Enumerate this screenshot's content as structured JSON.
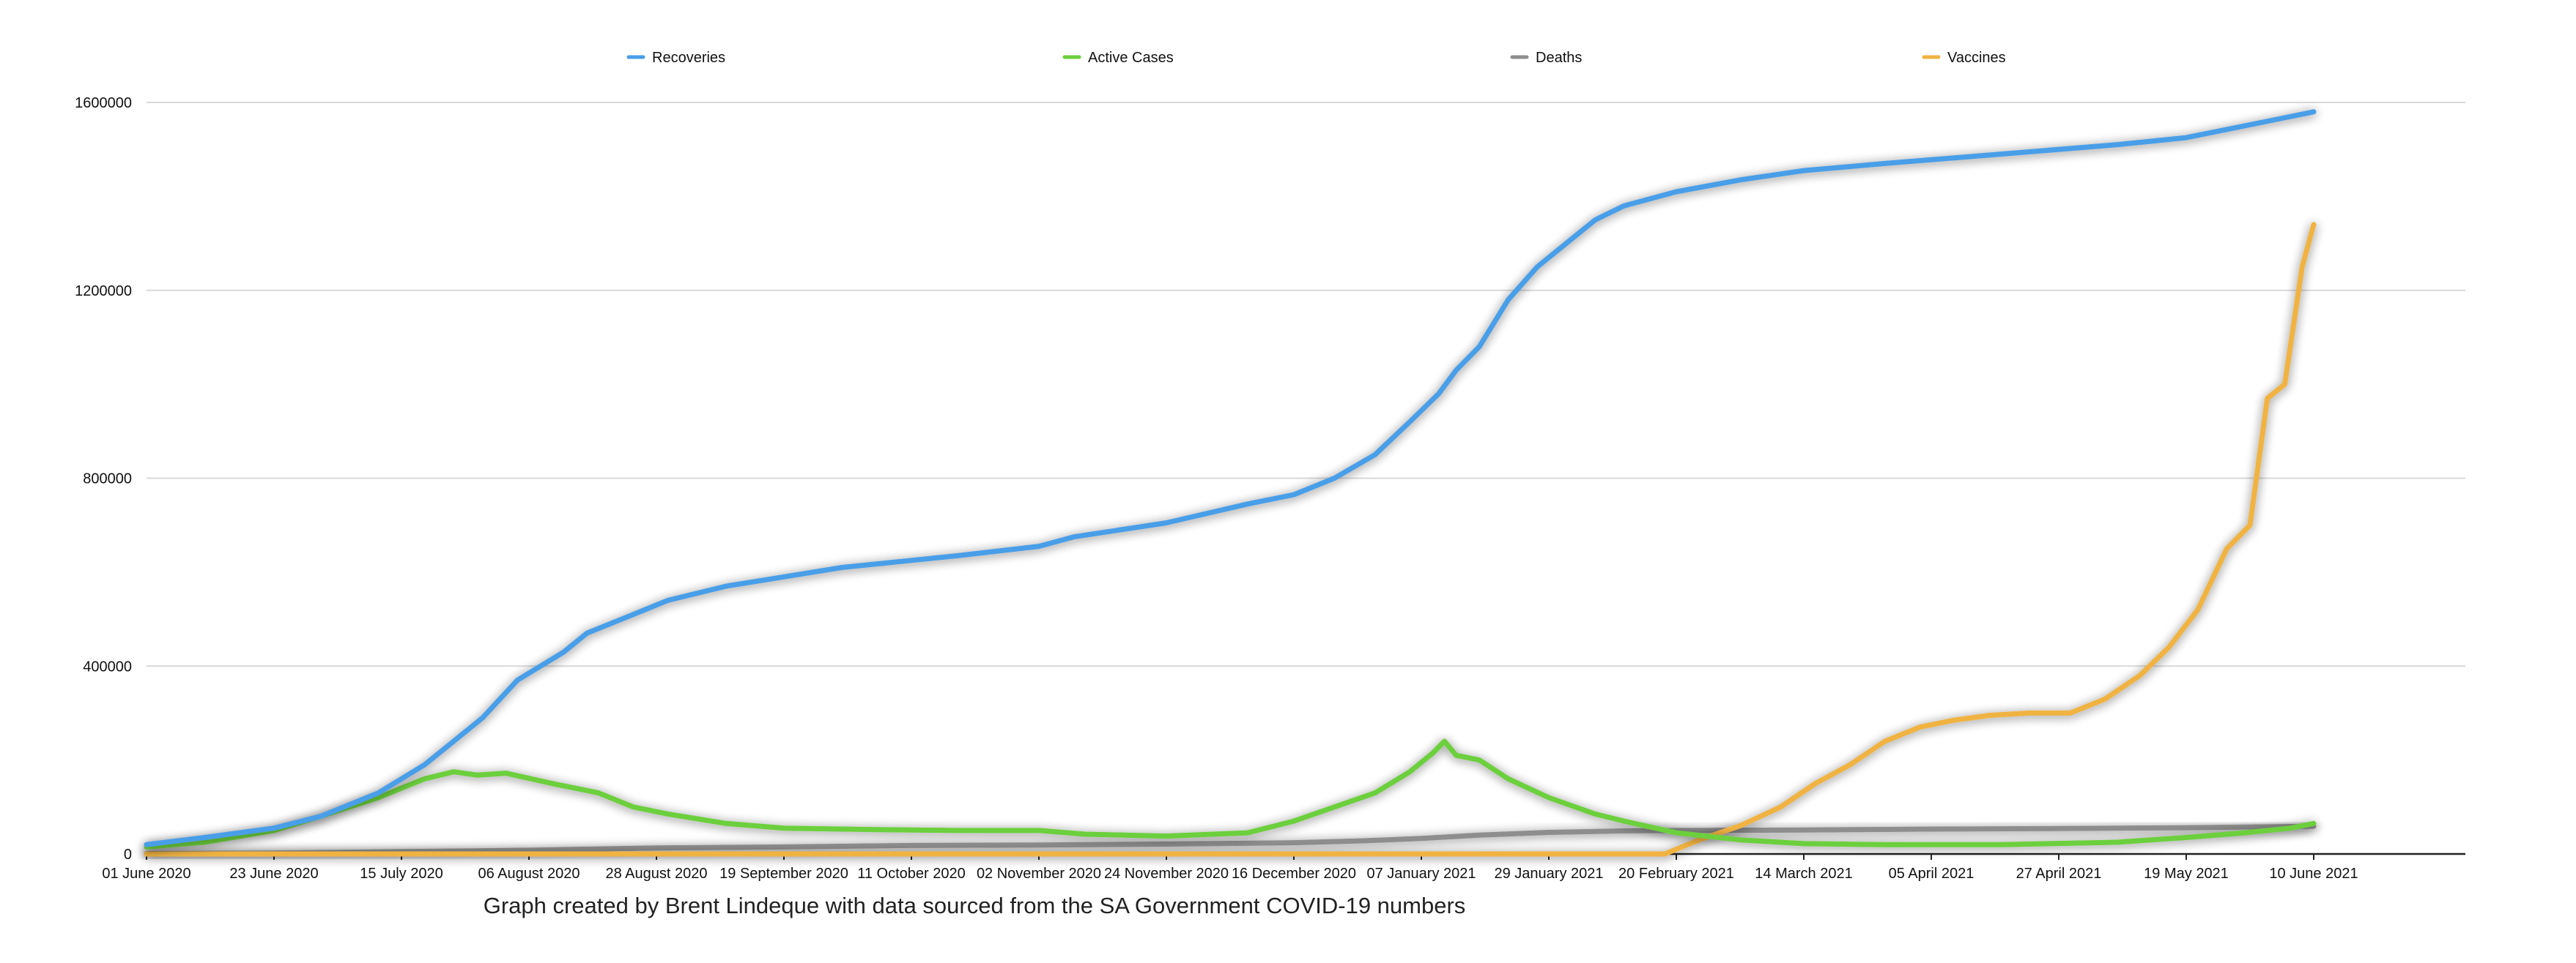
{
  "chart_data": {
    "type": "line",
    "title": "",
    "caption": "Graph created by Brent Lindeque with data sourced from the SA Government COVID-19 numbers",
    "xlabel": "",
    "ylabel": "",
    "ylim": [
      0,
      1600000
    ],
    "yticks": [
      0,
      400000,
      800000,
      1200000,
      1600000
    ],
    "ytick_labels": [
      "0",
      "400000",
      "800000",
      "1200000",
      "1600000"
    ],
    "grid": true,
    "legend_position": "top",
    "x_range_days": [
      0,
      375
    ],
    "xticks": [
      {
        "day": 0,
        "label": "01 June 2020"
      },
      {
        "day": 22,
        "label": "23 June 2020"
      },
      {
        "day": 44,
        "label": "15 July 2020"
      },
      {
        "day": 66,
        "label": "06 August 2020"
      },
      {
        "day": 88,
        "label": "28 August 2020"
      },
      {
        "day": 110,
        "label": "19 September 2020"
      },
      {
        "day": 132,
        "label": "11 October 2020"
      },
      {
        "day": 154,
        "label": "02 November 2020"
      },
      {
        "day": 176,
        "label": "24 November 2020"
      },
      {
        "day": 198,
        "label": "16 December 2020"
      },
      {
        "day": 220,
        "label": "07 January 2021"
      },
      {
        "day": 242,
        "label": "29 January 2021"
      },
      {
        "day": 264,
        "label": "20 February 2021"
      },
      {
        "day": 286,
        "label": "14 March 2021"
      },
      {
        "day": 308,
        "label": "05 April 2021"
      },
      {
        "day": 330,
        "label": "27 April 2021"
      },
      {
        "day": 352,
        "label": "19 May 2021"
      },
      {
        "day": 374,
        "label": "10 June 2021"
      }
    ],
    "series": [
      {
        "name": "Recoveries",
        "color": "#4a9ee8",
        "points": [
          [
            0,
            20000
          ],
          [
            10,
            35000
          ],
          [
            22,
            55000
          ],
          [
            30,
            80000
          ],
          [
            40,
            130000
          ],
          [
            48,
            190000
          ],
          [
            52,
            230000
          ],
          [
            58,
            290000
          ],
          [
            64,
            370000
          ],
          [
            72,
            430000
          ],
          [
            76,
            470000
          ],
          [
            82,
            500000
          ],
          [
            90,
            540000
          ],
          [
            100,
            570000
          ],
          [
            110,
            590000
          ],
          [
            120,
            610000
          ],
          [
            132,
            625000
          ],
          [
            140,
            635000
          ],
          [
            154,
            655000
          ],
          [
            160,
            675000
          ],
          [
            176,
            705000
          ],
          [
            190,
            745000
          ],
          [
            198,
            765000
          ],
          [
            205,
            800000
          ],
          [
            212,
            850000
          ],
          [
            218,
            920000
          ],
          [
            223,
            980000
          ],
          [
            226,
            1030000
          ],
          [
            230,
            1080000
          ],
          [
            235,
            1180000
          ],
          [
            240,
            1250000
          ],
          [
            245,
            1300000
          ],
          [
            250,
            1350000
          ],
          [
            255,
            1380000
          ],
          [
            264,
            1410000
          ],
          [
            275,
            1435000
          ],
          [
            286,
            1455000
          ],
          [
            300,
            1470000
          ],
          [
            320,
            1490000
          ],
          [
            340,
            1510000
          ],
          [
            352,
            1525000
          ],
          [
            360,
            1545000
          ],
          [
            368,
            1565000
          ],
          [
            374,
            1580000
          ]
        ]
      },
      {
        "name": "Active Cases",
        "color": "#6ccf3c",
        "points": [
          [
            0,
            15000
          ],
          [
            10,
            25000
          ],
          [
            22,
            50000
          ],
          [
            30,
            80000
          ],
          [
            40,
            120000
          ],
          [
            48,
            160000
          ],
          [
            53,
            175000
          ],
          [
            57,
            168000
          ],
          [
            62,
            172000
          ],
          [
            70,
            150000
          ],
          [
            78,
            130000
          ],
          [
            84,
            100000
          ],
          [
            90,
            85000
          ],
          [
            100,
            65000
          ],
          [
            110,
            55000
          ],
          [
            125,
            52000
          ],
          [
            140,
            50000
          ],
          [
            154,
            50000
          ],
          [
            162,
            42000
          ],
          [
            176,
            38000
          ],
          [
            190,
            45000
          ],
          [
            198,
            70000
          ],
          [
            205,
            100000
          ],
          [
            212,
            130000
          ],
          [
            218,
            175000
          ],
          [
            222,
            215000
          ],
          [
            224,
            240000
          ],
          [
            226,
            210000
          ],
          [
            230,
            200000
          ],
          [
            235,
            160000
          ],
          [
            242,
            120000
          ],
          [
            250,
            85000
          ],
          [
            255,
            70000
          ],
          [
            264,
            45000
          ],
          [
            275,
            30000
          ],
          [
            286,
            22000
          ],
          [
            300,
            20000
          ],
          [
            320,
            20000
          ],
          [
            340,
            25000
          ],
          [
            352,
            35000
          ],
          [
            362,
            45000
          ],
          [
            370,
            55000
          ],
          [
            374,
            65000
          ]
        ]
      },
      {
        "name": "Deaths",
        "color": "#8e8e8e",
        "points": [
          [
            0,
            800
          ],
          [
            22,
            2000
          ],
          [
            44,
            5000
          ],
          [
            66,
            8000
          ],
          [
            88,
            13000
          ],
          [
            110,
            15000
          ],
          [
            132,
            18000
          ],
          [
            154,
            19000
          ],
          [
            176,
            21000
          ],
          [
            198,
            24000
          ],
          [
            210,
            28000
          ],
          [
            220,
            33000
          ],
          [
            230,
            40000
          ],
          [
            242,
            46000
          ],
          [
            255,
            49000
          ],
          [
            264,
            50000
          ],
          [
            286,
            51000
          ],
          [
            308,
            53000
          ],
          [
            330,
            54000
          ],
          [
            352,
            56000
          ],
          [
            374,
            59000
          ]
        ]
      },
      {
        "name": "Vaccines",
        "color": "#f0b342",
        "points": [
          [
            0,
            0
          ],
          [
            262,
            0
          ],
          [
            268,
            30000
          ],
          [
            275,
            60000
          ],
          [
            282,
            100000
          ],
          [
            288,
            150000
          ],
          [
            294,
            190000
          ],
          [
            300,
            240000
          ],
          [
            306,
            270000
          ],
          [
            312,
            285000
          ],
          [
            318,
            295000
          ],
          [
            325,
            300000
          ],
          [
            332,
            300000
          ],
          [
            338,
            330000
          ],
          [
            344,
            380000
          ],
          [
            349,
            440000
          ],
          [
            354,
            520000
          ],
          [
            359,
            650000
          ],
          [
            363,
            700000
          ],
          [
            366,
            970000
          ],
          [
            369,
            1000000
          ],
          [
            372,
            1250000
          ],
          [
            374,
            1340000
          ]
        ]
      }
    ]
  }
}
